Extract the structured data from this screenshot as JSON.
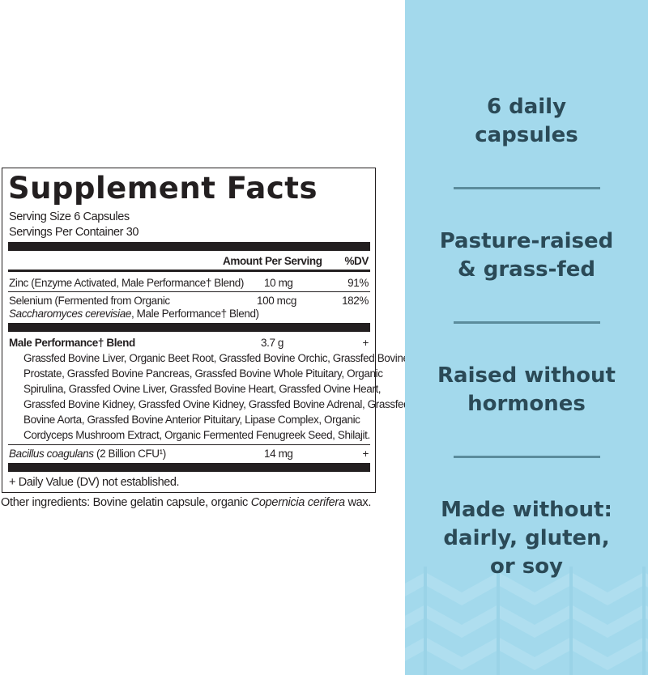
{
  "label": {
    "title": "Supplement Facts",
    "serving_size": "Serving Size 6 Capsules",
    "servings_per_container": "Servings Per Container 30",
    "header_amount": "Amount Per Serving",
    "header_dv": "%DV",
    "rows": [
      {
        "name": "Zinc (Enzyme Activated, Male Performance† Blend)",
        "amount": "10 mg",
        "dv": "91%"
      },
      {
        "name": "Selenium (Fermented from Organic",
        "name_line2_italic": "Saccharomyces cerevisiae",
        "name_line2_rest": ", Male Performance† Blend)",
        "amount": "100 mcg",
        "dv": "182%"
      }
    ],
    "blend": {
      "name": "Male Performance† Blend",
      "amount": "3.7 g",
      "dv": "+",
      "ingredients_lines": [
        "Grassfed Bovine Liver, Organic Beet Root, Grassfed Bovine Orchic, Grassfed Bovine",
        "Prostate, Grassfed Bovine Pancreas, Grassfed Bovine Whole Pituitary, Organic",
        "Spirulina, Grassfed Ovine Liver, Grassfed Bovine Heart, Grassfed Ovine Heart,",
        "Grassfed Bovine Kidney, Grassfed Ovine Kidney, Grassfed Bovine Adrenal, Grassfed",
        "Bovine Aorta, Grassfed Bovine Anterior Pituitary, Lipase Complex, Organic",
        "Cordyceps Mushroom Extract, Organic Fermented Fenugreek Seed, Shilajit."
      ]
    },
    "bacillus": {
      "name_italic": "Bacillus coagulans",
      "name_rest": " (2 Billion CFU¹)",
      "amount": "14 mg",
      "dv": "+"
    },
    "footnote": "+ Daily Value (DV) not established.",
    "other_prefix": "Other ingredients: Bovine gelatin capsule, organic ",
    "other_italic": "Copernicia cerifera",
    "other_suffix": " wax."
  },
  "panel": {
    "background": "#a3d9ec",
    "text_color": "#2b4a57",
    "claims": [
      {
        "line1": "6 daily",
        "line2": "capsules"
      },
      {
        "line1": "Pasture-raised",
        "line2": "& grass-fed"
      },
      {
        "line1": "Raised without",
        "line2": "hormones"
      },
      {
        "line1": "Made without:",
        "line2": "dairly, gluten,",
        "line3": "or soy"
      }
    ]
  }
}
